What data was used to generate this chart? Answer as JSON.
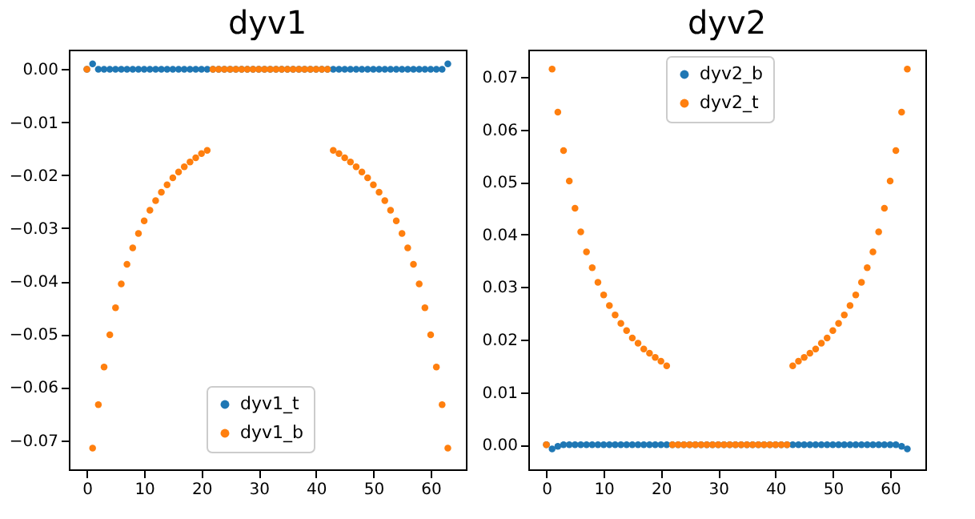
{
  "chart_data": [
    {
      "type": "scatter",
      "title": "dyv1",
      "marker": "circle",
      "grid": false,
      "legend": "bottom",
      "x": [
        0,
        1,
        2,
        3,
        4,
        5,
        6,
        7,
        8,
        9,
        10,
        11,
        12,
        13,
        14,
        15,
        16,
        17,
        18,
        19,
        20,
        21,
        22,
        23,
        24,
        25,
        26,
        27,
        28,
        29,
        30,
        31,
        32,
        33,
        34,
        35,
        36,
        37,
        38,
        39,
        40,
        41,
        42,
        43,
        44,
        45,
        46,
        47,
        48,
        49,
        50,
        51,
        52,
        53,
        54,
        55,
        56,
        57,
        58,
        59,
        60,
        61,
        62,
        63
      ],
      "xlim": [
        -3.15,
        66.15
      ],
      "xticks": [
        0,
        10,
        20,
        30,
        40,
        50,
        60
      ],
      "ylim": [
        -0.0755,
        0.0037
      ],
      "yticks": [
        {
          "value": -0.07,
          "label": "−0.07"
        },
        {
          "value": -0.06,
          "label": "−0.06"
        },
        {
          "value": -0.05,
          "label": "−0.05"
        },
        {
          "value": -0.04,
          "label": "−0.04"
        },
        {
          "value": -0.03,
          "label": "−0.03"
        },
        {
          "value": -0.02,
          "label": "−0.02"
        },
        {
          "value": -0.01,
          "label": "−0.01"
        },
        {
          "value": 0,
          "label": "0.00"
        }
      ],
      "series": [
        {
          "name": "dyv1_t",
          "color": "#1f77b4",
          "values": [
            0,
            0.001,
            0,
            0,
            0,
            0,
            0,
            0,
            0,
            0,
            0,
            0,
            0,
            0,
            0,
            0,
            0,
            0,
            0,
            0,
            0,
            0,
            0,
            0,
            0,
            0,
            0,
            0,
            0,
            0,
            0,
            0,
            0,
            0,
            0,
            0,
            0,
            0,
            0,
            0,
            0,
            0,
            0,
            0,
            0,
            0,
            0,
            0,
            0,
            0,
            0,
            0,
            0,
            0,
            0,
            0,
            0,
            0,
            0,
            0,
            0,
            0,
            0,
            0.001
          ]
        },
        {
          "name": "dyv1_b",
          "color": "#ff7f0e",
          "values": [
            0,
            -0.0715,
            -0.0633,
            -0.0562,
            -0.0501,
            -0.045,
            -0.0405,
            -0.0368,
            -0.0337,
            -0.031,
            -0.0286,
            -0.0266,
            -0.0248,
            -0.0232,
            -0.0218,
            -0.0205,
            -0.0194,
            -0.0184,
            -0.0175,
            -0.0167,
            -0.0159,
            -0.0153,
            0,
            0,
            0,
            0,
            0,
            0,
            0,
            0,
            0,
            0,
            0,
            0,
            0,
            0,
            0,
            0,
            0,
            0,
            0,
            0,
            0,
            -0.0153,
            -0.0159,
            -0.0167,
            -0.0175,
            -0.0184,
            -0.0194,
            -0.0205,
            -0.0218,
            -0.0232,
            -0.0248,
            -0.0266,
            -0.0286,
            -0.031,
            -0.0337,
            -0.0368,
            -0.0405,
            -0.045,
            -0.0501,
            -0.0562,
            -0.0633,
            -0.0715
          ]
        }
      ]
    },
    {
      "type": "scatter",
      "title": "dyv2",
      "marker": "circle",
      "grid": false,
      "legend": "top",
      "x": [
        0,
        1,
        2,
        3,
        4,
        5,
        6,
        7,
        8,
        9,
        10,
        11,
        12,
        13,
        14,
        15,
        16,
        17,
        18,
        19,
        20,
        21,
        22,
        23,
        24,
        25,
        26,
        27,
        28,
        29,
        30,
        31,
        32,
        33,
        34,
        35,
        36,
        37,
        38,
        39,
        40,
        41,
        42,
        43,
        44,
        45,
        46,
        47,
        48,
        49,
        50,
        51,
        52,
        53,
        54,
        55,
        56,
        57,
        58,
        59,
        60,
        61,
        62,
        63
      ],
      "xlim": [
        -3.15,
        66.15
      ],
      "xticks": [
        0,
        10,
        20,
        30,
        40,
        50,
        60
      ],
      "ylim": [
        -0.0047,
        0.0752
      ],
      "yticks": [
        {
          "value": 0,
          "label": "0.00"
        },
        {
          "value": 0.01,
          "label": "0.01"
        },
        {
          "value": 0.02,
          "label": "0.02"
        },
        {
          "value": 0.03,
          "label": "0.03"
        },
        {
          "value": 0.04,
          "label": "0.04"
        },
        {
          "value": 0.05,
          "label": "0.05"
        },
        {
          "value": 0.06,
          "label": "0.06"
        },
        {
          "value": 0.07,
          "label": "0.07"
        }
      ],
      "series": [
        {
          "name": "dyv2_b",
          "color": "#1f77b4",
          "values": [
            0,
            -0.0008,
            -0.0003,
            0,
            0,
            0,
            0,
            0,
            0,
            0,
            0,
            0,
            0,
            0,
            0,
            0,
            0,
            0,
            0,
            0,
            0,
            0,
            0,
            0,
            0,
            0,
            0,
            0,
            0,
            0,
            0,
            0,
            0,
            0,
            0,
            0,
            0,
            0,
            0,
            0,
            0,
            0,
            0,
            0,
            0,
            0,
            0,
            0,
            0,
            0,
            0,
            0,
            0,
            0,
            0,
            0,
            0,
            0,
            0,
            0,
            0,
            0,
            -0.0003,
            -0.0008
          ]
        },
        {
          "name": "dyv2_t",
          "color": "#ff7f0e",
          "values": [
            0,
            0.0715,
            0.0633,
            0.056,
            0.0502,
            0.045,
            0.0405,
            0.0367,
            0.0337,
            0.0309,
            0.0285,
            0.0265,
            0.0247,
            0.0231,
            0.0217,
            0.0203,
            0.0193,
            0.0182,
            0.0174,
            0.0166,
            0.0159,
            0.015,
            0,
            0,
            0,
            0,
            0,
            0,
            0,
            0,
            0,
            0,
            0,
            0,
            0,
            0,
            0,
            0,
            0,
            0,
            0,
            0,
            0,
            0.015,
            0.0159,
            0.0166,
            0.0174,
            0.0182,
            0.0193,
            0.0203,
            0.0217,
            0.0231,
            0.0247,
            0.0265,
            0.0285,
            0.0309,
            0.0337,
            0.0367,
            0.0405,
            0.045,
            0.0502,
            0.056,
            0.0633,
            0.0715
          ]
        }
      ]
    }
  ]
}
